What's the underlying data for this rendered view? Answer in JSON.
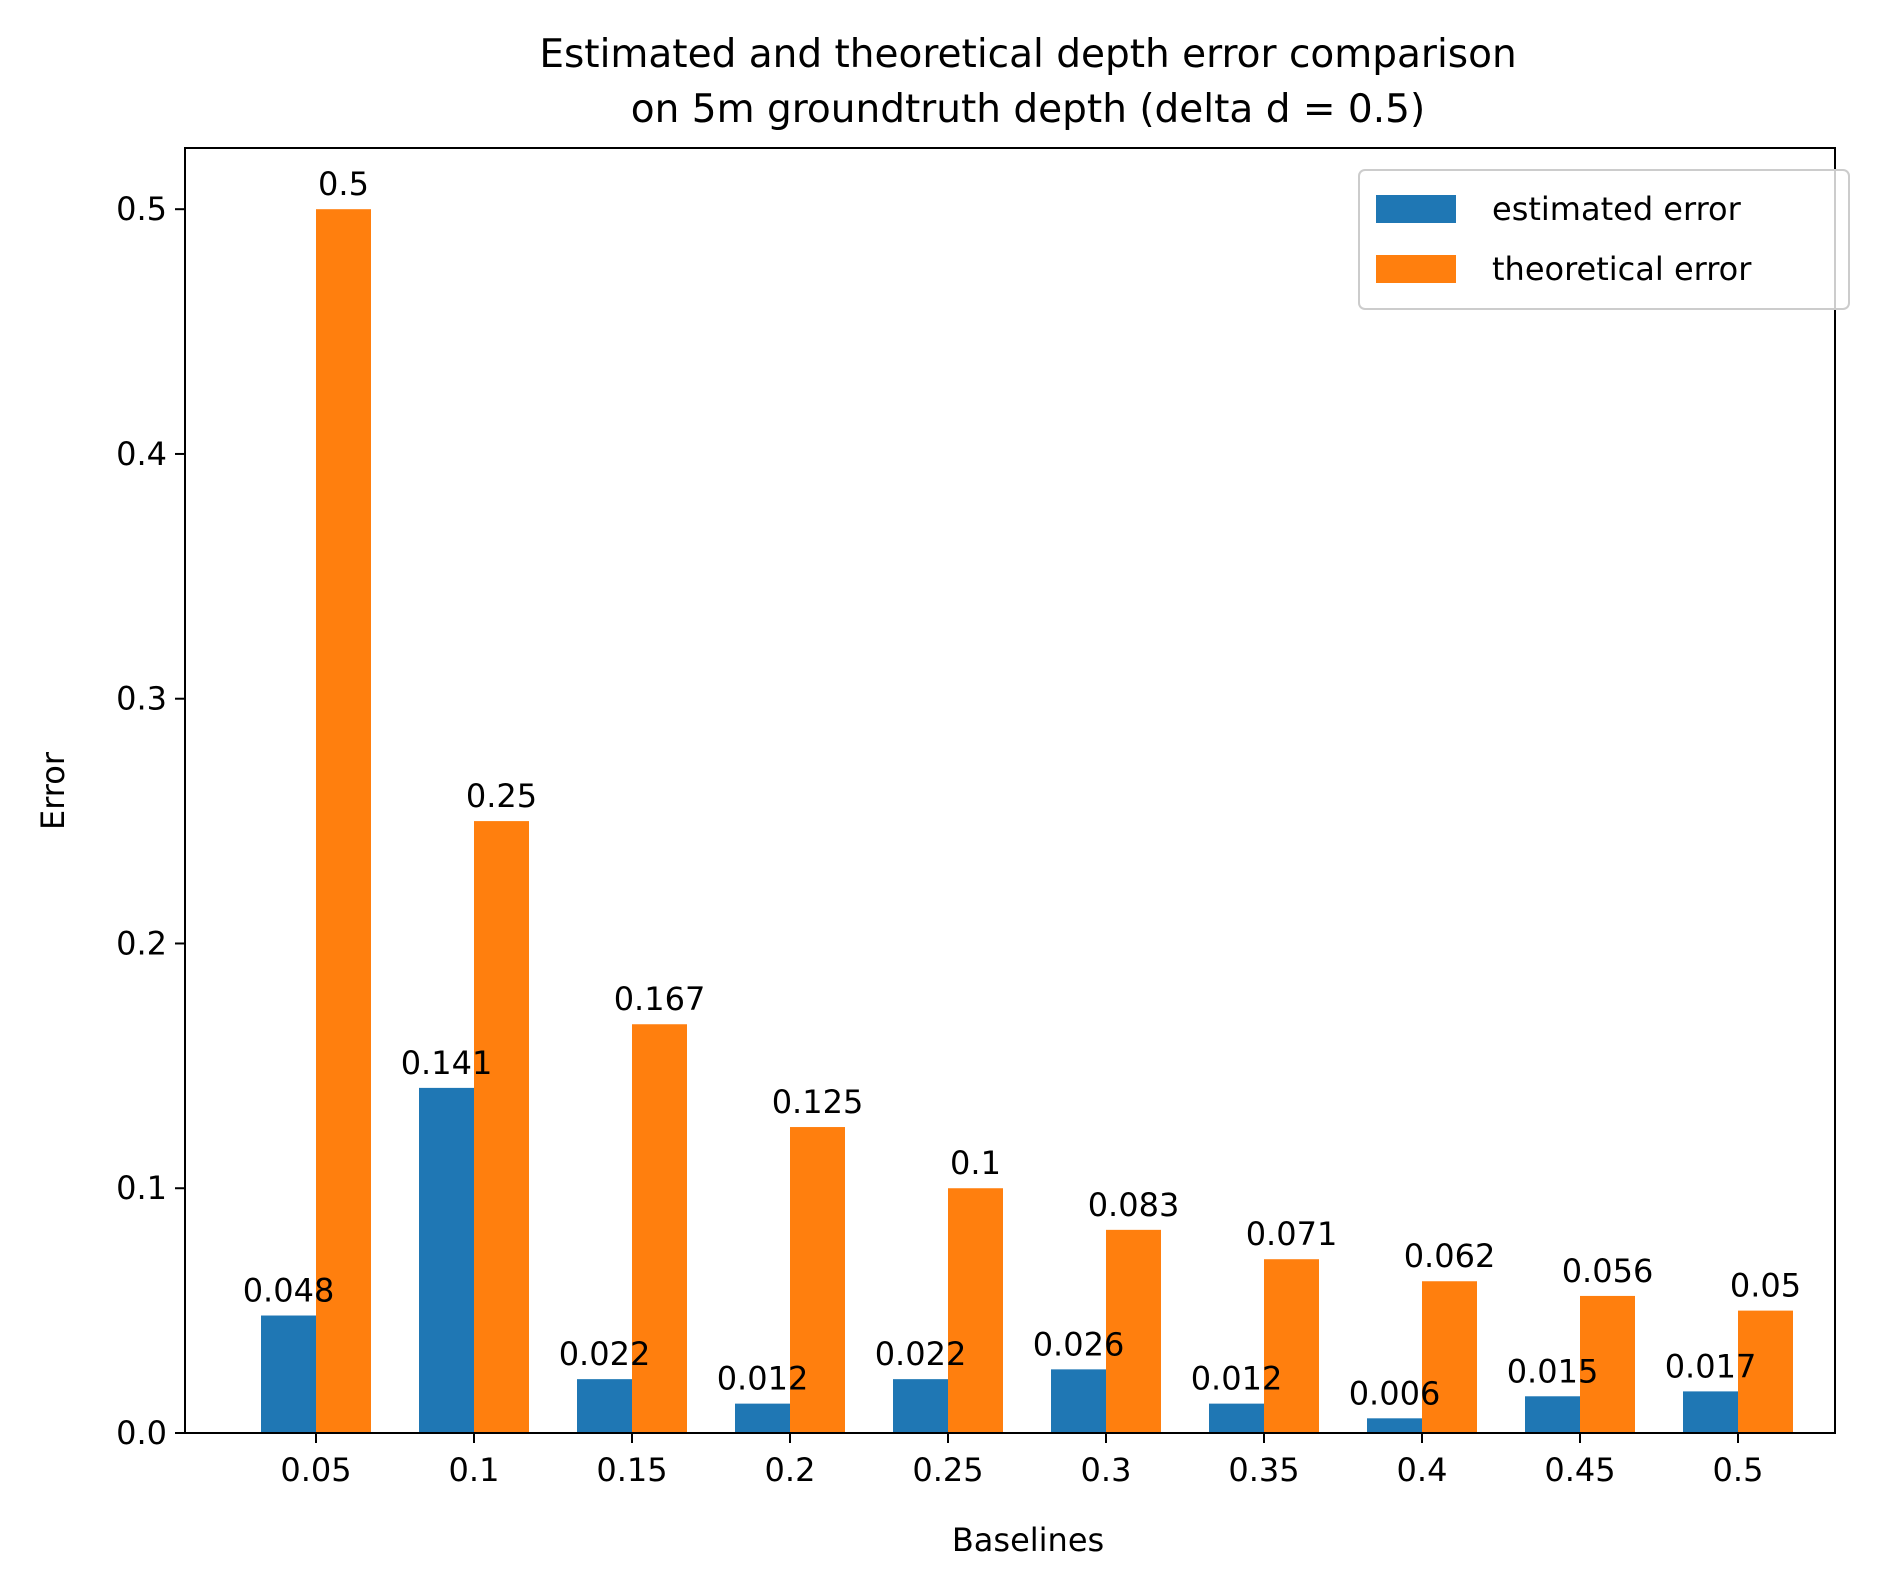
{
  "chart_data": {
    "type": "bar",
    "title": [
      "Estimated and theoretical depth error comparison",
      "on 5m groundtruth depth (delta d = 0.5)"
    ],
    "xlabel": "Baselines",
    "ylabel": "Error",
    "categories": [
      "0.05",
      "0.1",
      "0.15",
      "0.2",
      "0.25",
      "0.3",
      "0.35",
      "0.4",
      "0.45",
      "0.5"
    ],
    "series": [
      {
        "name": "estimated error",
        "color": "#1f77b4",
        "values": [
          0.048,
          0.141,
          0.022,
          0.012,
          0.022,
          0.026,
          0.012,
          0.006,
          0.015,
          0.017
        ],
        "labels": [
          "0.048",
          "0.141",
          "0.022",
          "0.012",
          "0.022",
          "0.026",
          "0.012",
          "0.006",
          "0.015",
          "0.017"
        ]
      },
      {
        "name": "theoretical error",
        "color": "#ff7f0e",
        "values": [
          0.5,
          0.25,
          0.167,
          0.125,
          0.1,
          0.083,
          0.071,
          0.062,
          0.056,
          0.05
        ],
        "labels": [
          "0.5",
          "0.25",
          "0.167",
          "0.125",
          "0.1",
          "0.083",
          "0.071",
          "0.062",
          "0.056",
          "0.05"
        ]
      }
    ],
    "ylim": [
      0,
      0.525
    ],
    "yticks": [
      "0.0",
      "0.1",
      "0.2",
      "0.3",
      "0.4",
      "0.5"
    ],
    "grid": false,
    "legend": "top-right"
  }
}
